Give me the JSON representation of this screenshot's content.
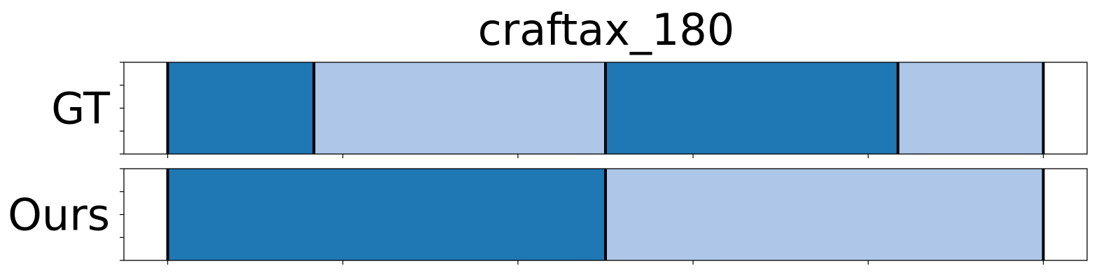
{
  "chart_data": {
    "type": "segmentation-timeline",
    "title": "craftax_180",
    "x_range": [
      -5,
      105
    ],
    "colors": {
      "dark": "#1f77b4",
      "light": "#aec7e8",
      "boundary": "#000000",
      "background": "#ffffff"
    },
    "rows": [
      {
        "label": "GT",
        "segments": [
          {
            "start": 0,
            "end": 16.7,
            "color": "dark"
          },
          {
            "start": 16.7,
            "end": 50,
            "color": "light"
          },
          {
            "start": 50,
            "end": 83.4,
            "color": "dark"
          },
          {
            "start": 83.4,
            "end": 100,
            "color": "light"
          }
        ],
        "boundaries": [
          0,
          16.7,
          50,
          83.4,
          100
        ]
      },
      {
        "label": "Ours",
        "segments": [
          {
            "start": 0,
            "end": 50,
            "color": "dark"
          },
          {
            "start": 50,
            "end": 100,
            "color": "light"
          }
        ],
        "boundaries": [
          0,
          50,
          100
        ]
      }
    ],
    "x_ticks": [
      0,
      20,
      40,
      60,
      80,
      100
    ],
    "y_ticks_per_row": 5,
    "grid": false,
    "legend": "none"
  }
}
